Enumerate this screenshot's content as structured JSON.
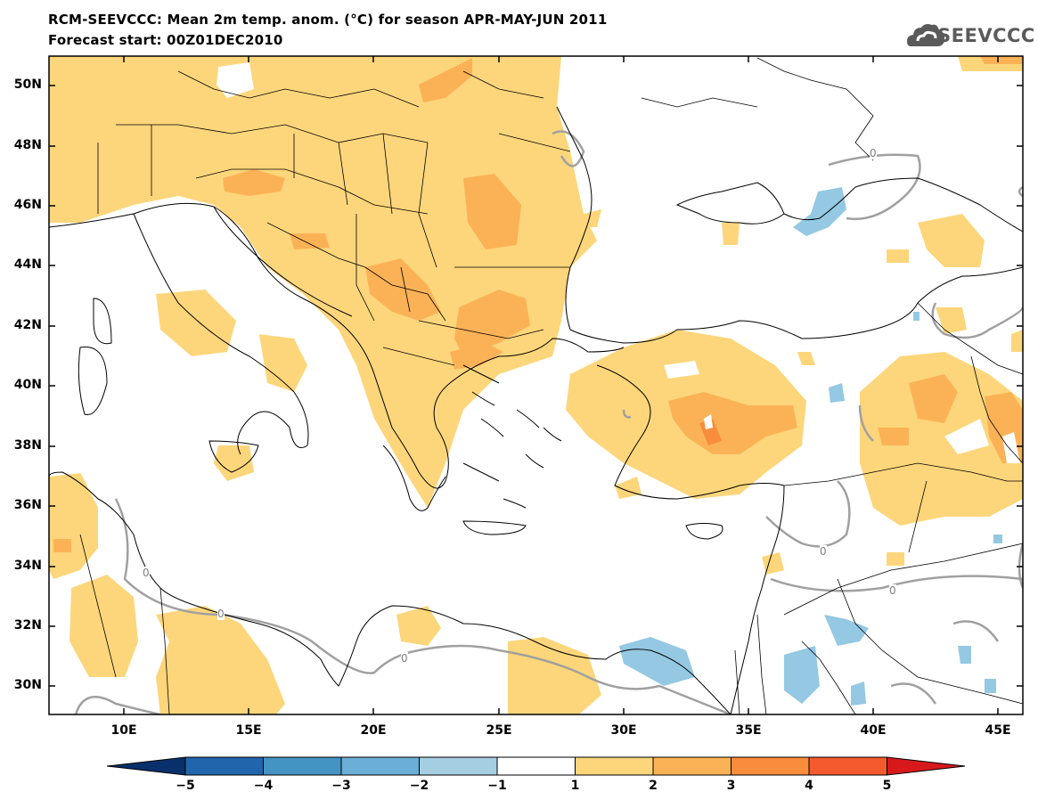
{
  "header": {
    "title_line1": "RCM-SEEVCCC: Mean 2m temp. anom. (°C) for season APR-MAY-JUN 2011",
    "title_line2": "Forecast start: 00Z01DEC2010"
  },
  "logo": {
    "text": "SEEVCCC",
    "icon": "cloud-logo-icon"
  },
  "map": {
    "lat_labels": [
      "50N",
      "48N",
      "46N",
      "44N",
      "42N",
      "40N",
      "38N",
      "36N",
      "34N",
      "32N",
      "30N"
    ],
    "lon_labels": [
      "10E",
      "15E",
      "20E",
      "25E",
      "30E",
      "35E",
      "40E",
      "45E"
    ],
    "contour_labels": [
      "0",
      "0",
      "0",
      "0",
      "0",
      "0"
    ],
    "colors": {
      "anom_1_2": "#FDD67B",
      "anom_2_3": "#FBB256",
      "anom_3_4": "#F98C3D",
      "anom_neg_1_2": "#94C8E3",
      "zero_contour": "#A0A0A0"
    }
  },
  "colorbar": {
    "labels": [
      "−5",
      "−4",
      "−3",
      "−2",
      "−1",
      "1",
      "2",
      "3",
      "4",
      "5"
    ],
    "colors": [
      "#08306B",
      "#2166AC",
      "#4393C3",
      "#6BAED6",
      "#A6CEE3",
      "#FFFFFF",
      "#FDD67B",
      "#FBB256",
      "#F98C3D",
      "#F45A2E",
      "#D7191C"
    ]
  }
}
